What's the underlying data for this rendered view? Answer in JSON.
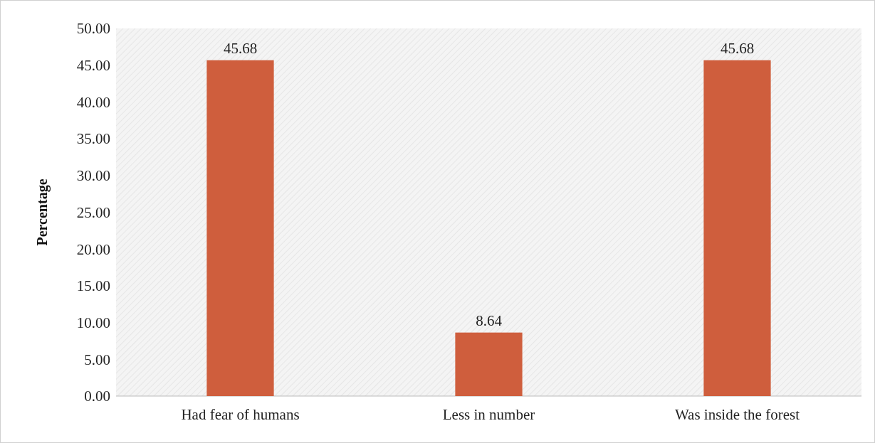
{
  "chart_data": {
    "type": "bar",
    "ylabel": "Percentage",
    "categories": [
      "Had fear of humans",
      "Less in number",
      "Was inside the forest"
    ],
    "values": [
      45.68,
      8.64,
      45.68
    ],
    "color": "#cf5e3d",
    "ylim": [
      0,
      50
    ],
    "yticks": [
      {
        "value": 0,
        "label": "0.00"
      },
      {
        "value": 5,
        "label": "5.00"
      },
      {
        "value": 10,
        "label": "10.00"
      },
      {
        "value": 15,
        "label": "15.00"
      },
      {
        "value": 20,
        "label": "20.00"
      },
      {
        "value": 25,
        "label": "25.00"
      },
      {
        "value": 30,
        "label": "30.00"
      },
      {
        "value": 35,
        "label": "35.00"
      },
      {
        "value": 40,
        "label": "40.00"
      },
      {
        "value": 45,
        "label": "45.00"
      },
      {
        "value": 50,
        "label": "50.00"
      }
    ],
    "data_labels": true
  }
}
